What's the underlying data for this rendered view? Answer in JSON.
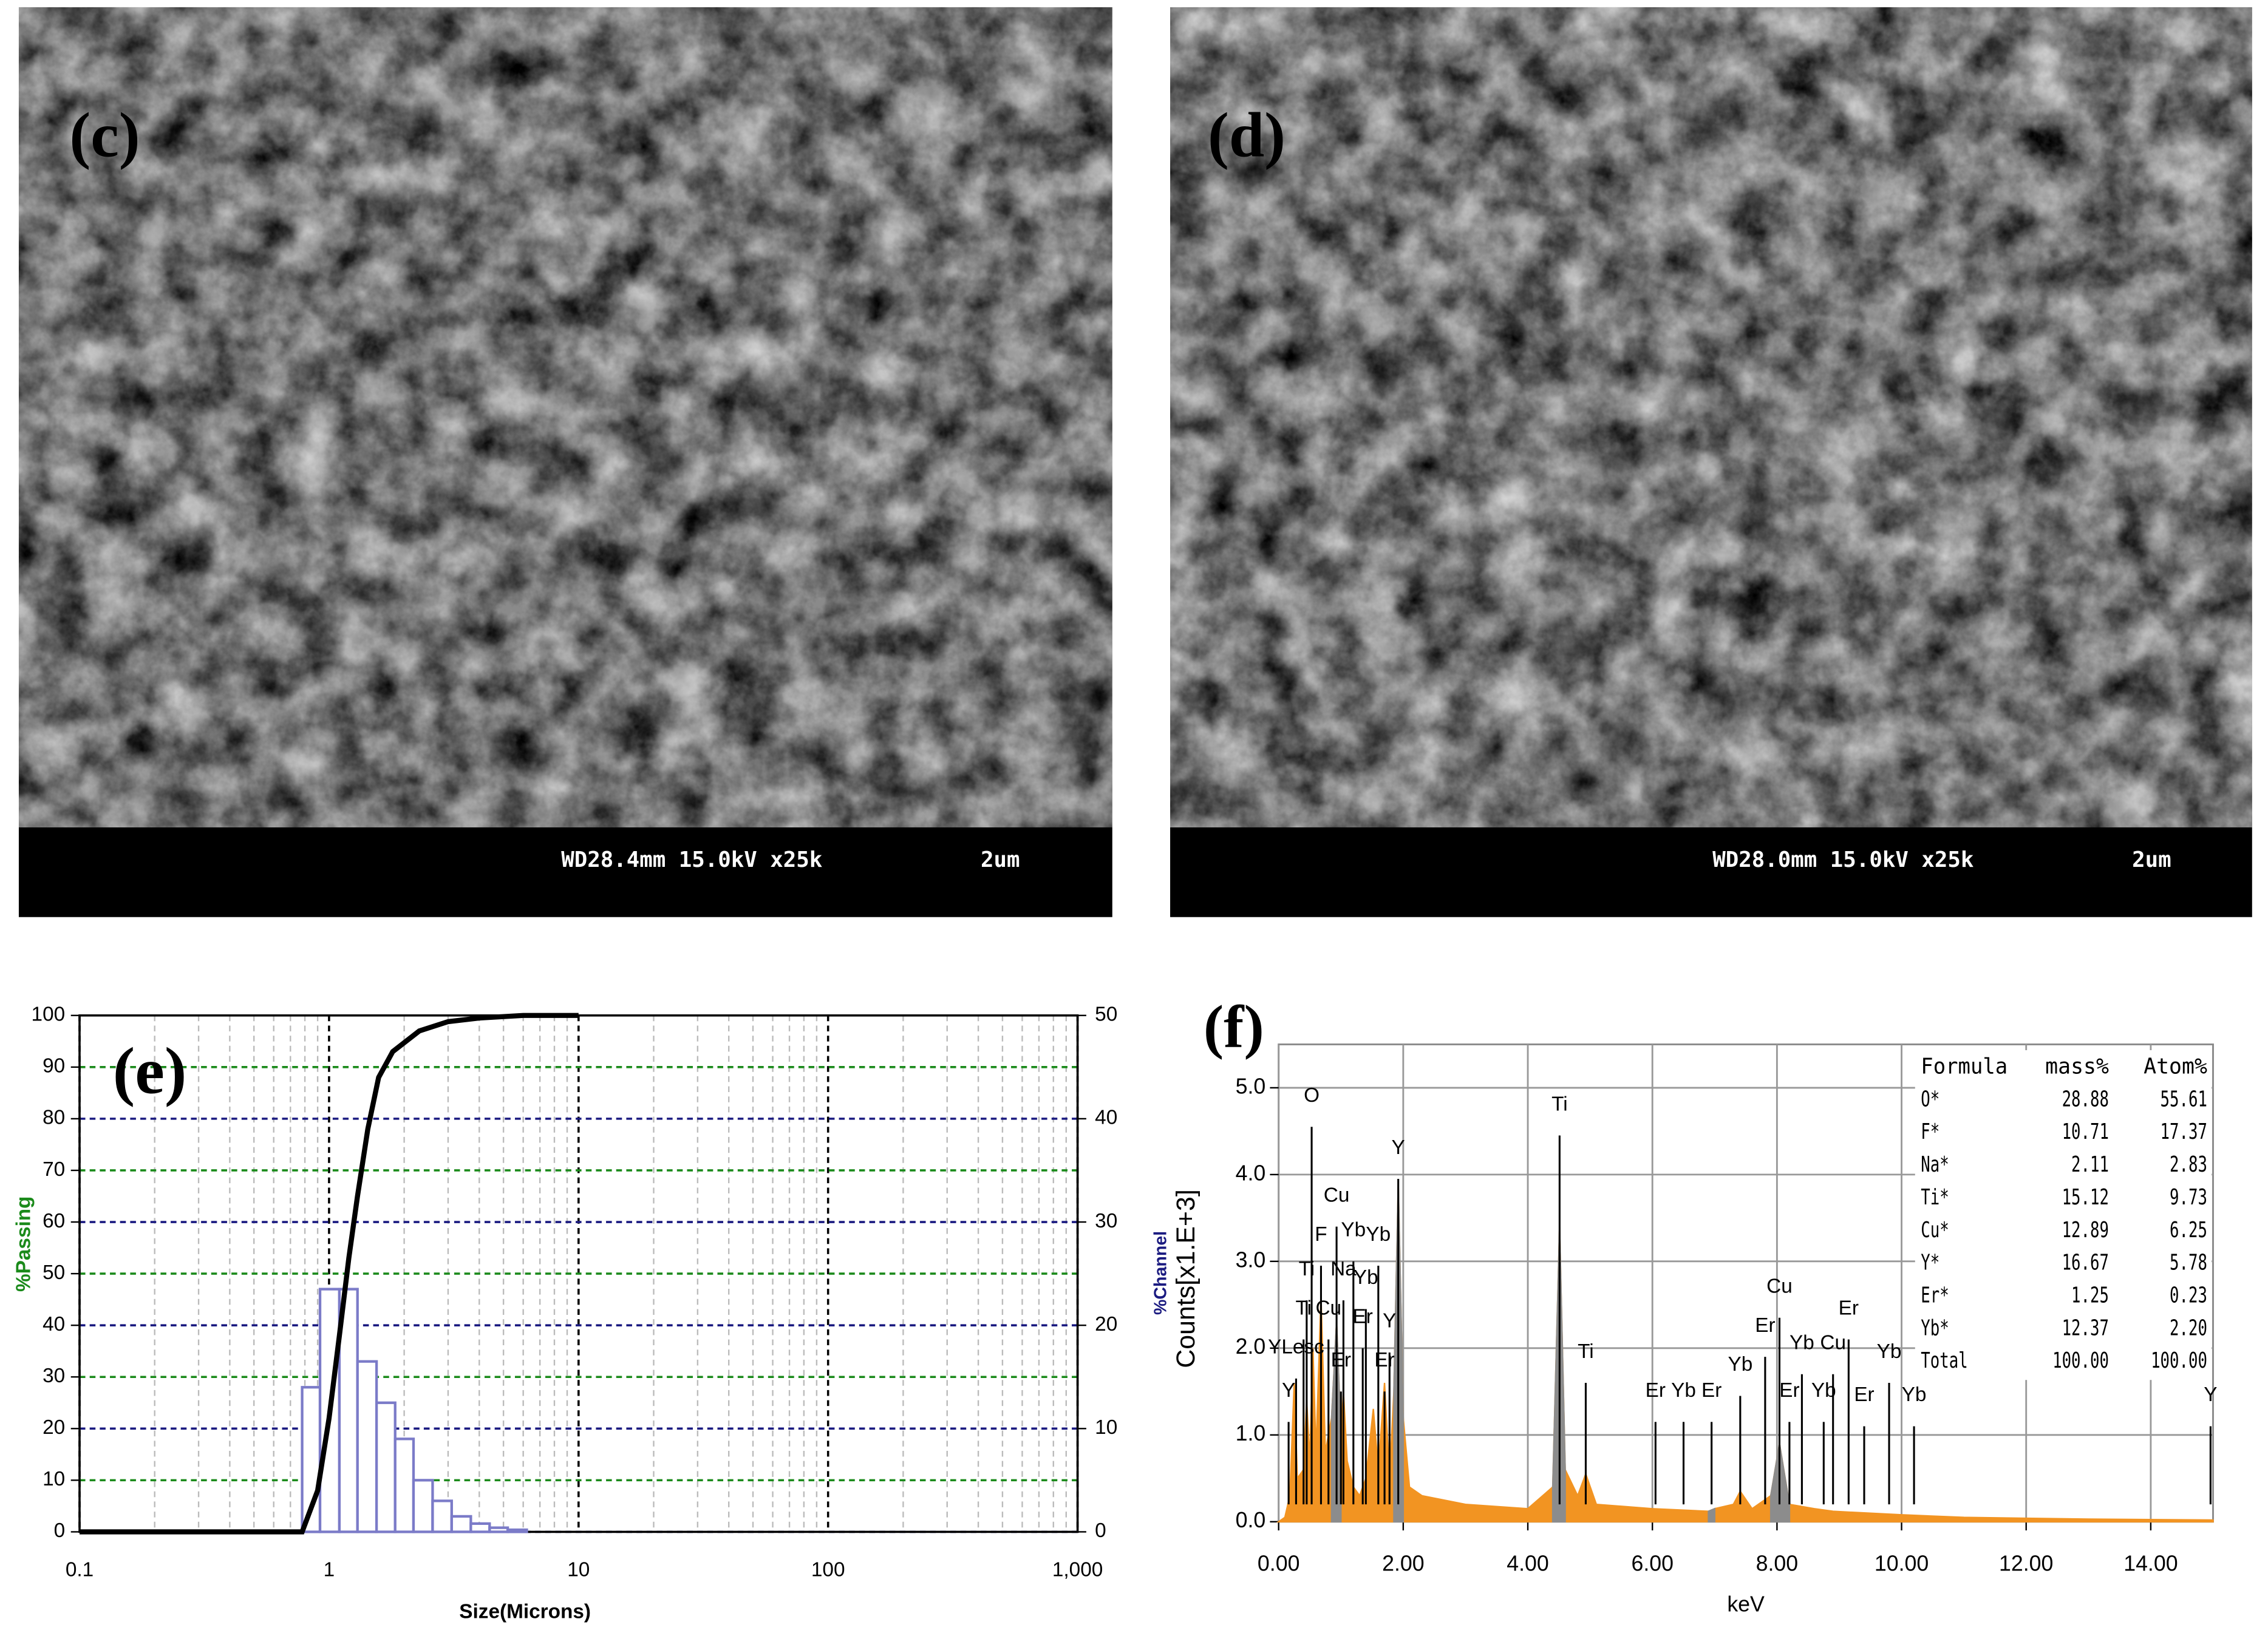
{
  "sem_images": [
    {
      "label": "(c)",
      "caption": "WD28.4mm 15.0kV x25k",
      "scale": "2um"
    },
    {
      "label": "(d)",
      "caption": "WD28.0mm 15.0kV x25k",
      "scale": "2um"
    }
  ],
  "chart_data": [
    {
      "type": "histogram",
      "label": "(e)",
      "xlabel": "Size(Microns)",
      "ylabel": "%Passing",
      "log_scale": true,
      "xlim": [
        0.1,
        1000
      ],
      "xticks": [
        0.1,
        1,
        10,
        100,
        {
          "value": 1000,
          "label": "1,000"
        }
      ],
      "ylim": [
        0,
        100
      ],
      "yticks": [
        0,
        10,
        20,
        30,
        40,
        50,
        60,
        70,
        80,
        90,
        100
      ],
      "y2lim": [
        0,
        50
      ],
      "y2ticks": [
        0,
        10,
        20,
        30,
        40,
        50
      ],
      "grid": true,
      "grid_colors": [
        "#1a1a80",
        "#1a8a1a"
      ],
      "bins": [
        0.78,
        0.92,
        1.1,
        1.3,
        1.55,
        1.84,
        2.18,
        2.6,
        3.1,
        3.7,
        4.4,
        5.2,
        6.2
      ],
      "counts": [
        14,
        23.5,
        23.5,
        16.5,
        12.5,
        9,
        5,
        3,
        1.5,
        0.8,
        0.4,
        0.2
      ],
      "axis": "y2",
      "color": "#7b7bc8",
      "line": {
        "color": "#000000",
        "x": [
          0.1,
          0.78,
          0.9,
          1.0,
          1.1,
          1.2,
          1.3,
          1.43,
          1.58,
          1.8,
          2.3,
          3,
          4,
          6,
          10
        ],
        "values": [
          0,
          0,
          8,
          22,
          38,
          53,
          65,
          78,
          88,
          93,
          97,
          98.8,
          99.5,
          100,
          100
        ]
      }
    },
    {
      "type": "area",
      "label": "(f)",
      "xlabel": "keV",
      "ylabel": "Counts[x1.E+3]",
      "subylabel": "%Channel",
      "xlim": [
        0,
        15
      ],
      "xticks": [
        {
          "value": 0,
          "label": "0.00"
        },
        {
          "value": 2,
          "label": "2.00"
        },
        {
          "value": 4,
          "label": "4.00"
        },
        {
          "value": 6,
          "label": "6.00"
        },
        {
          "value": 8,
          "label": "8.00"
        },
        {
          "value": 10,
          "label": "10.00"
        },
        {
          "value": 12,
          "label": "12.00"
        },
        {
          "value": 14,
          "label": "14.00"
        }
      ],
      "ylim": [
        0,
        5.5
      ],
      "yticks": [
        {
          "value": 0,
          "label": "0.0"
        },
        {
          "value": 1,
          "label": "1.0"
        },
        {
          "value": 2,
          "label": "2.0"
        },
        {
          "value": 3,
          "label": "3.0"
        },
        {
          "value": 4,
          "label": "4.0"
        },
        {
          "value": 5,
          "label": "5.0"
        }
      ],
      "grid": true,
      "x": [
        0,
        0.1,
        0.18,
        0.25,
        0.3,
        0.4,
        0.45,
        0.5,
        0.55,
        0.6,
        0.68,
        0.75,
        0.85,
        0.93,
        1.0,
        1.04,
        1.1,
        1.2,
        1.3,
        1.4,
        1.52,
        1.6,
        1.7,
        1.78,
        1.85,
        1.92,
        2.0,
        2.1,
        2.3,
        3.0,
        4.0,
        4.4,
        4.51,
        4.6,
        4.8,
        4.93,
        5.1,
        6.0,
        6.9,
        7.0,
        7.3,
        7.41,
        7.6,
        7.9,
        8.04,
        8.2,
        8.6,
        8.9,
        10,
        11,
        13,
        15
      ],
      "series": [
        {
          "color": "#f29422",
          "values": [
            0,
            0.05,
            0.3,
            1.6,
            0.5,
            0.6,
            1.4,
            0.7,
            2.0,
            0.8,
            2.6,
            0.8,
            1.2,
            2.3,
            1.0,
            1.5,
            0.7,
            0.4,
            0.3,
            0.5,
            1.3,
            0.6,
            1.6,
            0.5,
            1.5,
            3.9,
            1.2,
            0.4,
            0.3,
            0.2,
            0.15,
            0.4,
            3.4,
            0.6,
            0.3,
            0.55,
            0.2,
            0.15,
            0.12,
            0.15,
            0.2,
            0.35,
            0.15,
            0.3,
            0.9,
            0.2,
            0.15,
            0.12,
            0.08,
            0.05,
            0.03,
            0.02
          ]
        },
        {
          "color": "#8c8c8c",
          "values": [
            null,
            null,
            null,
            null,
            null,
            null,
            null,
            null,
            null,
            null,
            null,
            null,
            1.2,
            2.3,
            1.0,
            null,
            null,
            null,
            null,
            null,
            null,
            null,
            null,
            null,
            1.5,
            3.9,
            1.2,
            null,
            null,
            null,
            null,
            0.4,
            3.4,
            0.6,
            null,
            null,
            null,
            null,
            0.12,
            0.15,
            null,
            null,
            null,
            0.3,
            0.9,
            0.2,
            null,
            null,
            null,
            null,
            null,
            null
          ]
        }
      ],
      "markers": [
        {
          "label": "Y",
          "x": 0.16,
          "height": 1.5
        },
        {
          "label": "YLesc",
          "x": 0.28,
          "height": 2.0
        },
        {
          "label": "Ti",
          "x": 0.4,
          "height": 2.45
        },
        {
          "label": "Ti",
          "x": 0.45,
          "height": 2.9
        },
        {
          "label": "O",
          "x": 0.53,
          "height": 4.9
        },
        {
          "label": "F",
          "x": 0.68,
          "height": 3.3
        },
        {
          "label": "Cu",
          "x": 0.8,
          "height": 2.45
        },
        {
          "label": "Cu",
          "x": 0.93,
          "height": 3.75
        },
        {
          "label": "Er",
          "x": 1.0,
          "height": 1.85
        },
        {
          "label": "Na",
          "x": 1.04,
          "height": 2.9
        },
        {
          "label": "Yb",
          "x": 1.2,
          "height": 3.35
        },
        {
          "label": "Er",
          "x": 1.35,
          "height": 2.35
        },
        {
          "label": "Yb",
          "x": 1.4,
          "height": 2.8
        },
        {
          "label": "Yb",
          "x": 1.6,
          "height": 3.3
        },
        {
          "label": "Er",
          "x": 1.7,
          "height": 1.85
        },
        {
          "label": "Y",
          "x": 1.78,
          "height": 2.3
        },
        {
          "label": "Y",
          "x": 1.92,
          "height": 4.3
        },
        {
          "label": "Ti",
          "x": 4.51,
          "height": 4.8
        },
        {
          "label": "Ti",
          "x": 4.93,
          "height": 1.95
        },
        {
          "label": "Er",
          "x": 6.05,
          "height": 1.5
        },
        {
          "label": "Yb",
          "x": 6.5,
          "height": 1.5
        },
        {
          "label": "Er",
          "x": 6.95,
          "height": 1.5
        },
        {
          "label": "Yb",
          "x": 7.41,
          "height": 1.8
        },
        {
          "label": "Er",
          "x": 7.81,
          "height": 2.25
        },
        {
          "label": "Cu",
          "x": 8.04,
          "height": 2.7
        },
        {
          "label": "Er",
          "x": 8.2,
          "height": 1.5
        },
        {
          "label": "Yb",
          "x": 8.4,
          "height": 2.05
        },
        {
          "label": "Yb",
          "x": 8.75,
          "height": 1.5
        },
        {
          "label": "Cu",
          "x": 8.9,
          "height": 2.05
        },
        {
          "label": "Er",
          "x": 9.15,
          "height": 2.45
        },
        {
          "label": "Er",
          "x": 9.4,
          "height": 1.45
        },
        {
          "label": "Yb",
          "x": 9.8,
          "height": 1.95
        },
        {
          "label": "Yb",
          "x": 10.2,
          "height": 1.45
        },
        {
          "label": "Y",
          "x": 14.96,
          "height": 1.45
        }
      ],
      "table": {
        "columns": [
          "Formula",
          "mass%",
          "Atom%"
        ],
        "rows": [
          [
            "O*",
            "28.88",
            "55.61"
          ],
          [
            "F*",
            "10.71",
            "17.37"
          ],
          [
            "Na*",
            "2.11",
            "2.83"
          ],
          [
            "Ti*",
            "15.12",
            "9.73"
          ],
          [
            "Cu*",
            "12.89",
            "6.25"
          ],
          [
            "Y*",
            "16.67",
            "5.78"
          ],
          [
            "Er*",
            "1.25",
            "0.23"
          ],
          [
            "Yb*",
            "12.37",
            "2.20"
          ],
          [
            "Total",
            "100.00",
            "100.00"
          ]
        ]
      }
    }
  ]
}
